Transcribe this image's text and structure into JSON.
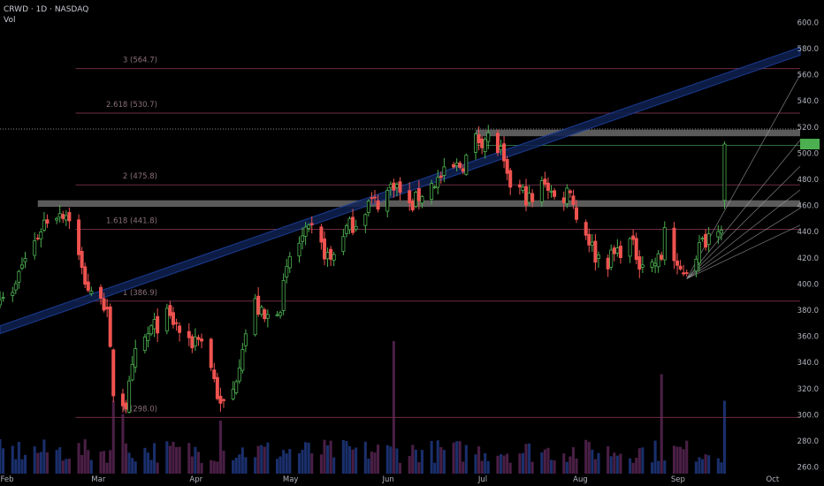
{
  "header": {
    "title": "CRWD · 1D · NASDAQ",
    "vol_label": "Vol"
  },
  "colors": {
    "up": "#26a69a",
    "down": "#ef5350",
    "up_wick": "#4caf50",
    "vol_up": "#1a2f6b",
    "vol_down": "#4a1f45",
    "channel": "#1e3f9a",
    "fib": "#6b2b45",
    "zone": "#7a7a7a",
    "last_price": "#4caf50"
  },
  "chart_data": {
    "type": "candlestick",
    "ticker": "CRWD",
    "interval": "1D",
    "exchange": "NASDAQ",
    "y_range": [
      255,
      605
    ],
    "y_ticks": [
      "600.0",
      "580.0",
      "560.0",
      "540.0",
      "520.0",
      "500.0",
      "480.0",
      "460.0",
      "440.0",
      "420.0",
      "400.0",
      "380.0",
      "360.0",
      "340.0",
      "320.0",
      "300.0",
      "280.0",
      "260.0"
    ],
    "x_range": [
      "2024-02-01",
      "2024-10-12"
    ],
    "x_ticks": [
      {
        "label": "Feb",
        "date": "2024-02-01"
      },
      {
        "label": "Mar",
        "date": "2024-03-01"
      },
      {
        "label": "Apr",
        "date": "2024-04-01"
      },
      {
        "label": "May",
        "date": "2024-05-01"
      },
      {
        "label": "Jun",
        "date": "2024-06-01"
      },
      {
        "label": "Jul",
        "date": "2024-07-01"
      },
      {
        "label": "Aug",
        "date": "2024-08-01"
      },
      {
        "label": "Sep",
        "date": "2024-09-01"
      },
      {
        "label": "Oct",
        "date": "2024-10-01"
      }
    ],
    "close_path": [
      [
        "2024-02-01",
        395
      ],
      [
        "2024-02-05",
        390
      ],
      [
        "2024-02-08",
        415
      ],
      [
        "2024-02-12",
        432
      ],
      [
        "2024-02-15",
        448
      ],
      [
        "2024-02-20",
        456
      ],
      [
        "2024-02-23",
        452
      ],
      [
        "2024-02-27",
        410
      ],
      [
        "2024-03-01",
        390
      ],
      [
        "2024-03-04",
        395
      ],
      [
        "2024-03-06",
        375
      ],
      [
        "2024-03-08",
        318
      ],
      [
        "2024-03-12",
        308
      ],
      [
        "2024-03-15",
        345
      ],
      [
        "2024-03-20",
        365
      ],
      [
        "2024-03-25",
        375
      ],
      [
        "2024-03-28",
        368
      ],
      [
        "2024-04-01",
        352
      ],
      [
        "2024-04-04",
        362
      ],
      [
        "2024-04-08",
        338
      ],
      [
        "2024-04-11",
        305
      ],
      [
        "2024-04-15",
        318
      ],
      [
        "2024-04-18",
        355
      ],
      [
        "2024-04-22",
        385
      ],
      [
        "2024-04-25",
        372
      ],
      [
        "2024-04-30",
        385
      ],
      [
        "2024-05-03",
        420
      ],
      [
        "2024-05-07",
        435
      ],
      [
        "2024-05-10",
        440
      ],
      [
        "2024-05-13",
        428
      ],
      [
        "2024-05-16",
        418
      ],
      [
        "2024-05-20",
        440
      ],
      [
        "2024-05-24",
        448
      ],
      [
        "2024-05-28",
        462
      ],
      [
        "2024-06-01",
        463
      ],
      [
        "2024-06-05",
        478
      ],
      [
        "2024-06-10",
        458
      ],
      [
        "2024-06-14",
        470
      ],
      [
        "2024-06-18",
        478
      ],
      [
        "2024-06-24",
        488
      ],
      [
        "2024-06-27",
        492
      ],
      [
        "2024-07-01",
        510
      ],
      [
        "2024-07-05",
        512
      ],
      [
        "2024-07-09",
        500
      ],
      [
        "2024-07-11",
        478
      ],
      [
        "2024-07-15",
        472
      ],
      [
        "2024-07-19",
        462
      ],
      [
        "2024-07-23",
        480
      ],
      [
        "2024-07-27",
        460
      ],
      [
        "2024-07-31",
        475
      ],
      [
        "2024-08-02",
        450
      ],
      [
        "2024-08-05",
        440
      ],
      [
        "2024-08-08",
        422
      ],
      [
        "2024-08-12",
        418
      ],
      [
        "2024-08-15",
        425
      ],
      [
        "2024-08-19",
        432
      ],
      [
        "2024-08-22",
        418
      ],
      [
        "2024-08-26",
        415
      ],
      [
        "2024-08-29",
        420
      ],
      [
        "2024-08-30",
        445
      ],
      [
        "2024-09-03",
        408
      ],
      [
        "2024-09-06",
        412
      ],
      [
        "2024-09-10",
        428
      ],
      [
        "2024-09-13",
        438
      ],
      [
        "2024-09-16",
        447
      ],
      [
        "2024-09-17",
        447
      ],
      [
        "2024-09-18",
        507
      ]
    ],
    "last_price": 507,
    "fib_levels": [
      {
        "label": "3 (564.7)",
        "value": 564.7
      },
      {
        "label": "2.618 (530.7)",
        "value": 530.7
      },
      {
        "label": "2 (475.8)",
        "value": 475.8
      },
      {
        "label": "1.618 (441.8)",
        "value": 441.8
      },
      {
        "label": "1 (386.9)",
        "value": 386.9
      },
      {
        "label": "0 (298.0)",
        "value": 298.0
      }
    ],
    "horizontal_zones": [
      [
        459,
        464
      ],
      [
        513,
        518
      ]
    ],
    "dotted_line": 518.5,
    "channel": {
      "start": [
        "2024-02-01",
        365
      ],
      "end": [
        "2024-10-12",
        578
      ],
      "width": 6
    },
    "fan": {
      "origin": [
        "2024-09-06",
        404
      ],
      "targets": [
        [
          "2024-10-12",
          560
        ],
        [
          "2024-10-12",
          510
        ],
        [
          "2024-10-12",
          490
        ],
        [
          "2024-10-12",
          472
        ],
        [
          "2024-10-12",
          458
        ],
        [
          "2024-10-12",
          445
        ]
      ]
    },
    "volume_spikes": [
      {
        "date": "2024-03-08",
        "rel": 0.55
      },
      {
        "date": "2024-03-11",
        "rel": 0.45
      },
      {
        "date": "2024-04-11",
        "rel": 0.4
      },
      {
        "date": "2024-06-05",
        "rel": 1.0
      },
      {
        "date": "2024-08-29",
        "rel": 0.75
      },
      {
        "date": "2024-09-18",
        "rel": 0.55
      }
    ]
  }
}
